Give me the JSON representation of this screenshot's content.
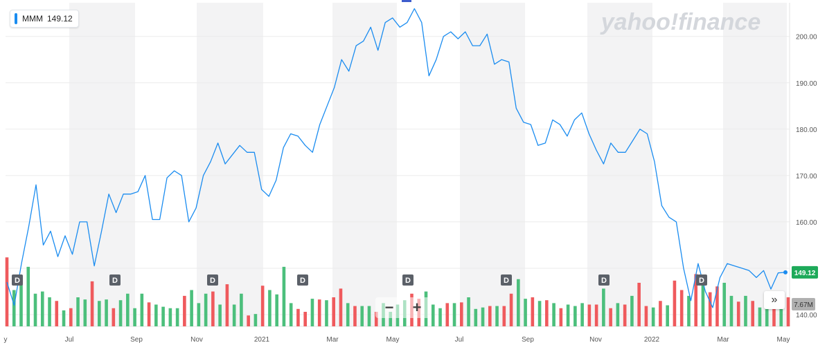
{
  "legend": {
    "ticker": "MMM",
    "value": "149.12",
    "color": "#1a8cf0"
  },
  "brand": "yahoo!finance",
  "badges": {
    "price": "149.12",
    "volume": "7.67M",
    "dividend": "D"
  },
  "colors": {
    "line": "#1a8cf0",
    "up": "#4cbf7c",
    "down": "#ef5a5d",
    "price_badge": "#1eaa5a",
    "volume_badge": "#b0b0b0"
  },
  "controls": {
    "zoom_out": "−",
    "zoom_in": "+",
    "more": "»"
  },
  "chart_data": {
    "type": "line",
    "title": "",
    "y_axis": {
      "ticks": [
        140,
        150,
        160,
        170,
        180,
        190,
        200
      ],
      "tick_labels": [
        "140.00",
        "150.00",
        "160.00",
        "170.00",
        "180.00",
        "190.00",
        "200.00"
      ],
      "range": [
        138,
        206
      ]
    },
    "x_axis": {
      "tick_labels": [
        "y",
        "Jul",
        "Sep",
        "Nov",
        "2021",
        "Mar",
        "May",
        "Jul",
        "Sep",
        "Nov",
        "2022",
        "Mar",
        "May"
      ]
    },
    "grid": true,
    "series": [
      {
        "name": "MMM",
        "values": [
          147,
          142,
          151,
          159,
          168,
          155,
          158,
          152.5,
          157,
          153,
          160,
          160,
          150.5,
          158,
          166,
          162,
          166,
          166,
          166.5,
          170,
          160.5,
          160.5,
          169.5,
          171,
          170,
          160,
          163,
          170,
          173,
          177,
          172.5,
          174.5,
          176.5,
          175,
          175,
          167,
          165.5,
          169,
          176,
          179,
          178.5,
          176.5,
          175,
          181,
          185,
          189,
          195,
          192.5,
          198,
          199,
          202,
          197,
          203,
          204,
          202,
          203,
          206,
          203,
          191.5,
          195,
          200,
          201,
          199.5,
          201,
          198,
          198,
          200.5,
          194,
          195,
          194.5,
          184.5,
          181.5,
          181,
          176.5,
          177,
          182,
          181,
          178.5,
          182,
          183.5,
          179,
          175.5,
          172.5,
          177,
          175,
          175,
          177.5,
          180,
          179,
          173,
          163.5,
          161,
          160,
          150,
          143,
          151,
          145,
          141.5,
          148,
          151,
          150.5,
          150,
          149.5,
          148,
          149.5,
          145.5,
          149,
          149.12
        ]
      }
    ],
    "volume_label": "7.67M",
    "volume_colors": [
      "down",
      "up",
      "up",
      "up",
      "up",
      "up",
      "up",
      "down",
      "up",
      "down",
      "up",
      "up",
      "down",
      "up",
      "up",
      "down",
      "up",
      "up",
      "up",
      "up",
      "down",
      "up",
      "up",
      "up",
      "up",
      "down",
      "up",
      "up",
      "up",
      "down",
      "up",
      "down",
      "up",
      "up",
      "down",
      "up",
      "down",
      "up",
      "up",
      "up",
      "up",
      "down",
      "down",
      "up",
      "down",
      "up",
      "down",
      "down",
      "up",
      "down",
      "up",
      "up",
      "down",
      "up",
      "up",
      "up",
      "up",
      "down",
      "down",
      "up",
      "up",
      "up",
      "down",
      "up",
      "down",
      "up",
      "up",
      "up",
      "down",
      "up",
      "down",
      "down",
      "up",
      "up",
      "down",
      "up",
      "down",
      "up",
      "down",
      "up",
      "up",
      "up",
      "down",
      "down",
      "up",
      "down",
      "up",
      "down",
      "up",
      "down",
      "down",
      "up",
      "down",
      "up",
      "down",
      "down",
      "up",
      "down",
      "up",
      "down",
      "down",
      "up",
      "up",
      "down",
      "up",
      "down",
      "up",
      "up",
      "down",
      "up",
      "down"
    ],
    "volume_levels": [
      0.95,
      0.5,
      0.6,
      0.82,
      0.45,
      0.48,
      0.4,
      0.35,
      0.22,
      0.25,
      0.4,
      0.37,
      0.62,
      0.35,
      0.37,
      0.25,
      0.36,
      0.45,
      0.25,
      0.45,
      0.33,
      0.3,
      0.27,
      0.25,
      0.25,
      0.42,
      0.5,
      0.32,
      0.45,
      0.48,
      0.3,
      0.58,
      0.3,
      0.45,
      0.15,
      0.17,
      0.56,
      0.5,
      0.44,
      0.82,
      0.32,
      0.24,
      0.2,
      0.38,
      0.37,
      0.36,
      0.4,
      0.52,
      0.32,
      0.28,
      0.28,
      0.28,
      0.2,
      0.32,
      0.2,
      0.3,
      0.36,
      0.45,
      0.38,
      0.48,
      0.3,
      0.25,
      0.32,
      0.32,
      0.33,
      0.4,
      0.24,
      0.26,
      0.28,
      0.28,
      0.28,
      0.45,
      0.65,
      0.38,
      0.4,
      0.35,
      0.36,
      0.32,
      0.25,
      0.3,
      0.28,
      0.32,
      0.3,
      0.3,
      0.52,
      0.25,
      0.32,
      0.3,
      0.42,
      0.6,
      0.28,
      0.26,
      0.35,
      0.29,
      0.63,
      0.5,
      0.42,
      0.72,
      0.58,
      0.47,
      0.55,
      0.6,
      0.42,
      0.34,
      0.42,
      0.35,
      0.26,
      0.38,
      0.45,
      0.27,
      0.4
    ]
  }
}
